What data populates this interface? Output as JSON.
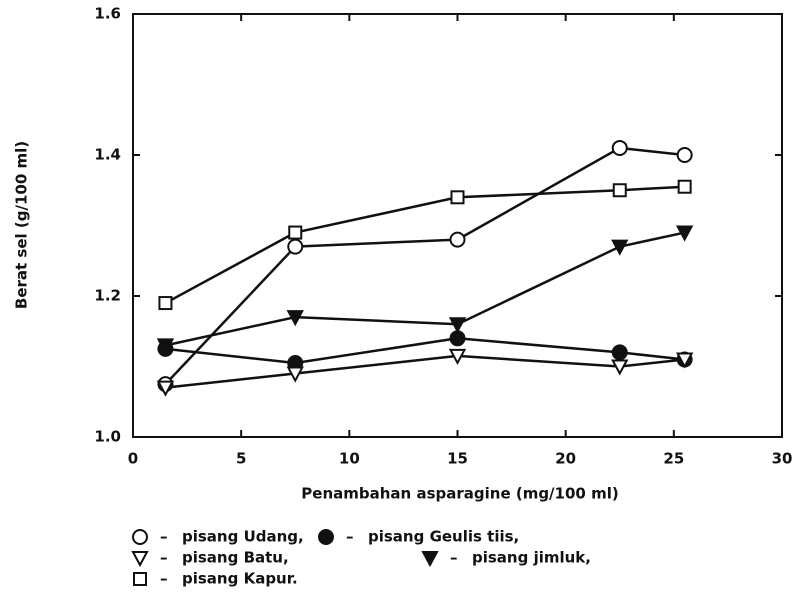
{
  "chart_data": {
    "type": "line",
    "xlabel": "Penambahan asparagine (mg/100 ml)",
    "ylabel": "Berat sel (g/100 ml)",
    "xlim": [
      0,
      30
    ],
    "xticks": [
      0,
      5,
      10,
      15,
      20,
      25,
      30
    ],
    "ylim": [
      1.0,
      1.6
    ],
    "yticks": [
      {
        "value": 1,
        "label": "1.0"
      },
      1.2,
      1.4,
      1.6
    ],
    "legend_separator": "–",
    "x": [
      1.5,
      7.5,
      15,
      22.5,
      25.5
    ],
    "series": [
      {
        "name": "pisang Udang,",
        "color": "#111111",
        "marker": "circle",
        "filled": false,
        "values": [
          1.075,
          1.27,
          1.28,
          1.41,
          1.4
        ]
      },
      {
        "name": "pisang Geulis tiis,",
        "color": "#111111",
        "marker": "circle",
        "filled": true,
        "values": [
          1.125,
          1.105,
          1.14,
          1.12,
          1.11
        ]
      },
      {
        "name": "pisang Batu,",
        "color": "#111111",
        "marker": "triangle-down",
        "filled": false,
        "values": [
          1.07,
          1.09,
          1.115,
          1.1,
          1.11
        ]
      },
      {
        "name": "pisang jimluk,",
        "color": "#111111",
        "marker": "triangle-down",
        "filled": true,
        "values": [
          1.13,
          1.17,
          1.16,
          1.27,
          1.29
        ]
      },
      {
        "name": "pisang Kapur.",
        "color": "#111111",
        "marker": "square",
        "filled": false,
        "values": [
          1.19,
          1.29,
          1.34,
          1.35,
          1.355
        ]
      }
    ]
  }
}
